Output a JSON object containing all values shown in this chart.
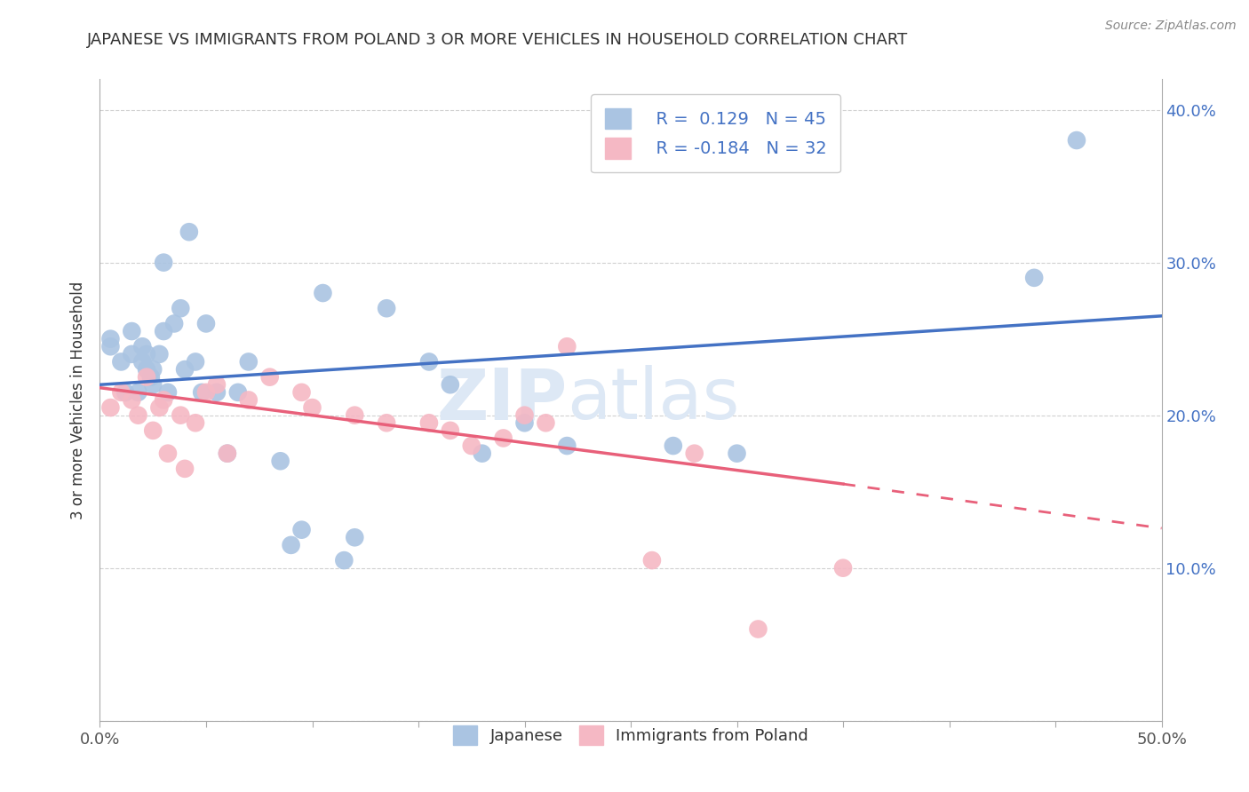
{
  "title": "JAPANESE VS IMMIGRANTS FROM POLAND 3 OR MORE VEHICLES IN HOUSEHOLD CORRELATION CHART",
  "source": "Source: ZipAtlas.com",
  "ylabel": "3 or more Vehicles in Household",
  "watermark_zip": "ZIP",
  "watermark_atlas": "atlas",
  "xlim": [
    0.0,
    0.5
  ],
  "ylim": [
    0.0,
    0.42
  ],
  "xticks": [
    0.0,
    0.05,
    0.1,
    0.15,
    0.2,
    0.25,
    0.3,
    0.35,
    0.4,
    0.45,
    0.5
  ],
  "yticks": [
    0.0,
    0.1,
    0.2,
    0.3,
    0.4
  ],
  "xtick_labels_show": [
    "0.0%",
    "50.0%"
  ],
  "ytick_right_labels": [
    "",
    "10.0%",
    "20.0%",
    "30.0%",
    "40.0%"
  ],
  "legend_R1": "R =  0.129",
  "legend_N1": "N = 45",
  "legend_R2": "R = -0.184",
  "legend_N2": "N = 32",
  "color_japanese": "#aac4e2",
  "color_poland": "#f5b8c4",
  "line_color_japanese": "#4472c4",
  "line_color_poland": "#e8607a",
  "legend_text_color": "#4472c4",
  "background_color": "#ffffff",
  "grid_color": "#d0d0d0",
  "japanese_x": [
    0.005,
    0.005,
    0.01,
    0.012,
    0.015,
    0.015,
    0.018,
    0.02,
    0.02,
    0.022,
    0.022,
    0.024,
    0.025,
    0.025,
    0.028,
    0.03,
    0.03,
    0.032,
    0.035,
    0.038,
    0.04,
    0.042,
    0.045,
    0.048,
    0.05,
    0.055,
    0.06,
    0.065,
    0.07,
    0.085,
    0.09,
    0.095,
    0.105,
    0.115,
    0.12,
    0.135,
    0.155,
    0.165,
    0.18,
    0.2,
    0.22,
    0.27,
    0.3,
    0.44,
    0.46
  ],
  "japanese_y": [
    0.245,
    0.25,
    0.235,
    0.215,
    0.24,
    0.255,
    0.215,
    0.235,
    0.245,
    0.23,
    0.24,
    0.225,
    0.22,
    0.23,
    0.24,
    0.255,
    0.3,
    0.215,
    0.26,
    0.27,
    0.23,
    0.32,
    0.235,
    0.215,
    0.26,
    0.215,
    0.175,
    0.215,
    0.235,
    0.17,
    0.115,
    0.125,
    0.28,
    0.105,
    0.12,
    0.27,
    0.235,
    0.22,
    0.175,
    0.195,
    0.18,
    0.18,
    0.175,
    0.29,
    0.38
  ],
  "poland_x": [
    0.005,
    0.01,
    0.015,
    0.018,
    0.022,
    0.025,
    0.028,
    0.03,
    0.032,
    0.038,
    0.04,
    0.045,
    0.05,
    0.055,
    0.06,
    0.07,
    0.08,
    0.095,
    0.1,
    0.12,
    0.135,
    0.155,
    0.165,
    0.175,
    0.19,
    0.2,
    0.21,
    0.22,
    0.26,
    0.28,
    0.31,
    0.35
  ],
  "poland_y": [
    0.205,
    0.215,
    0.21,
    0.2,
    0.225,
    0.19,
    0.205,
    0.21,
    0.175,
    0.2,
    0.165,
    0.195,
    0.215,
    0.22,
    0.175,
    0.21,
    0.225,
    0.215,
    0.205,
    0.2,
    0.195,
    0.195,
    0.19,
    0.18,
    0.185,
    0.2,
    0.195,
    0.245,
    0.105,
    0.175,
    0.06,
    0.1
  ],
  "trend_japan_x0": 0.0,
  "trend_japan_y0": 0.22,
  "trend_japan_x1": 0.5,
  "trend_japan_y1": 0.265,
  "trend_poland_x0": 0.0,
  "trend_poland_y0": 0.218,
  "trend_poland_x1": 0.35,
  "trend_poland_y1": 0.155,
  "trend_poland_dash_x1": 0.5,
  "trend_poland_dash_y1": 0.126
}
